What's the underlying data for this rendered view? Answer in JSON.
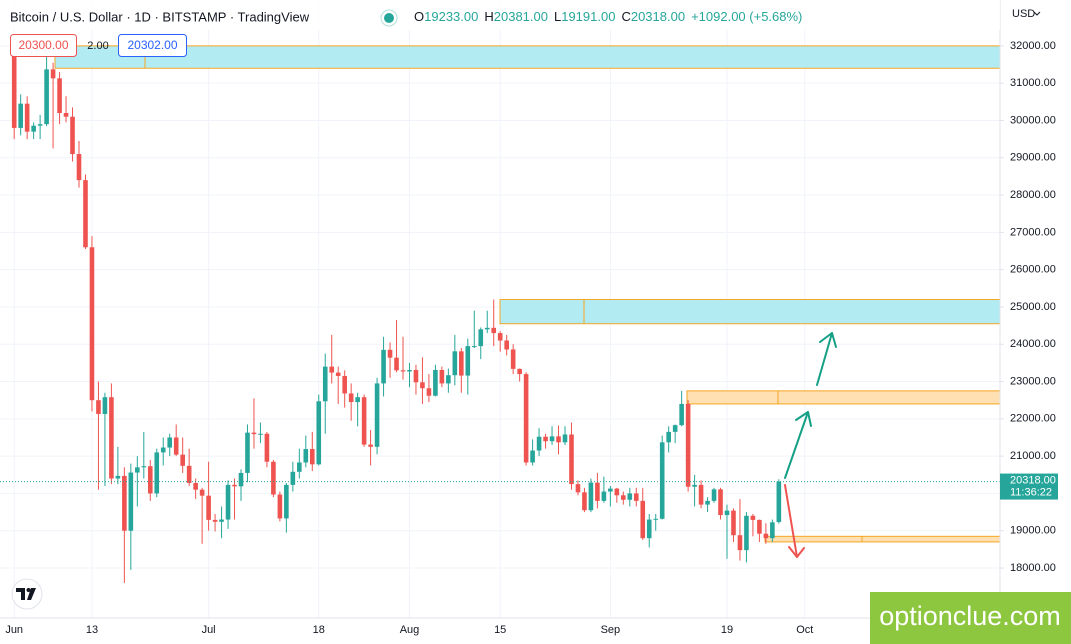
{
  "header": {
    "title": "Bitcoin / U.S. Dollar · 1D · BITSTAMP · TradingView",
    "ohlc": [
      {
        "key": "O",
        "value": "19233.00"
      },
      {
        "key": "H",
        "value": "20381.00"
      },
      {
        "key": "L",
        "value": "19191.00"
      },
      {
        "key": "C",
        "value": "20318.00"
      }
    ],
    "change": "+1092.00 (+5.68%)"
  },
  "trade": {
    "sell": "20300.00",
    "spread": "2.00",
    "buy": "20302.00"
  },
  "watermark": "optionclue.com",
  "chart_data": {
    "type": "candlestick",
    "categories": [
      "Jun",
      null,
      null,
      null,
      null,
      null,
      null,
      null,
      null,
      null,
      null,
      null,
      "13",
      null,
      null,
      null,
      null,
      null,
      null,
      null,
      null,
      null,
      null,
      null,
      null,
      null,
      null,
      null,
      null,
      null,
      "Jul",
      null,
      null,
      null,
      null,
      null,
      null,
      null,
      null,
      null,
      null,
      null,
      null,
      null,
      null,
      null,
      null,
      "18",
      null,
      null,
      null,
      null,
      null,
      null,
      null,
      null,
      null,
      null,
      null,
      null,
      null,
      "Aug",
      null,
      null,
      null,
      null,
      null,
      null,
      null,
      null,
      null,
      null,
      null,
      null,
      null,
      "15",
      null,
      null,
      null,
      null,
      null,
      null,
      null,
      null,
      null,
      null,
      null,
      null,
      null,
      null,
      null,
      null,
      "Sep",
      null,
      null,
      null,
      null,
      null,
      null,
      null,
      null,
      null,
      null,
      null,
      null,
      null,
      null,
      null,
      null,
      null,
      "19",
      null,
      null,
      null,
      null,
      null,
      null,
      null,
      null,
      null,
      null,
      null,
      "Oct"
    ],
    "open": [
      31800,
      29800,
      30450,
      29700,
      29860,
      29900,
      31370,
      31130,
      30200,
      30100,
      29100,
      28400,
      26600,
      22500,
      22130,
      22580,
      20400,
      20470,
      19000,
      20560,
      20700,
      20730,
      20000,
      21100,
      21230,
      21500,
      21040,
      20740,
      20280,
      20100,
      19940,
      19290,
      19240,
      19300,
      20230,
      20190,
      20550,
      21630,
      21590,
      21600,
      20850,
      19970,
      19330,
      20230,
      20580,
      20830,
      21190,
      20780,
      22470,
      23400,
      23240,
      23150,
      22680,
      22450,
      22580,
      21310,
      21250,
      22950,
      23850,
      23640,
      23300,
      23270,
      23310,
      22980,
      22820,
      22620,
      23310,
      22950,
      23170,
      23810,
      23160,
      23950,
      23950,
      24400,
      24440,
      24300,
      24100,
      23860,
      23340,
      23200,
      20830,
      21150,
      21520,
      21400,
      21530,
      21370,
      21580,
      20250,
      20030,
      19550,
      20290,
      19800,
      20050,
      20130,
      19950,
      19830,
      20000,
      19800,
      18800,
      19300,
      19320,
      21370,
      21650,
      21830,
      22400,
      20180,
      20230,
      19700,
      19800,
      20110,
      19420,
      19540,
      18880,
      18480,
      19400,
      19290,
      18920,
      18800,
      19233,
      null,
      null,
      null,
      null
    ],
    "high": [
      31950,
      30700,
      30650,
      29950,
      30150,
      31750,
      31550,
      31300,
      30650,
      30350,
      29450,
      28550,
      26900,
      23000,
      22700,
      22950,
      21250,
      20700,
      20800,
      21000,
      21650,
      20900,
      21200,
      21500,
      21600,
      21850,
      21500,
      21200,
      20400,
      20150,
      20850,
      19450,
      19650,
      20350,
      20400,
      20650,
      21850,
      22550,
      21900,
      21650,
      20900,
      20050,
      20280,
      20850,
      21200,
      21550,
      21650,
      22650,
      23750,
      24250,
      23400,
      23300,
      22950,
      22700,
      22650,
      21700,
      23100,
      24200,
      24050,
      24650,
      24200,
      23500,
      23450,
      23650,
      23200,
      23450,
      23400,
      23350,
      24250,
      23900,
      24150,
      24900,
      24450,
      24900,
      25200,
      24350,
      24250,
      24000,
      23350,
      23250,
      21450,
      21750,
      21600,
      21800,
      21820,
      21800,
      21900,
      20350,
      20150,
      20400,
      20550,
      20450,
      20200,
      20150,
      20050,
      20150,
      20150,
      20150,
      19450,
      19450,
      21550,
      21800,
      21850,
      22750,
      22500,
      20500,
      20350,
      19900,
      20150,
      20150,
      19700,
      19600,
      19850,
      19500,
      19450,
      19300,
      19200,
      19300,
      20381,
      null,
      null,
      null,
      null
    ],
    "low": [
      29500,
      29600,
      29500,
      29500,
      29500,
      29850,
      29250,
      29900,
      29950,
      28900,
      28200,
      26550,
      22200,
      20100,
      20200,
      20250,
      20250,
      17600,
      17950,
      19650,
      20400,
      19800,
      19900,
      20750,
      21000,
      21000,
      20550,
      20200,
      19850,
      18650,
      19000,
      18980,
      18800,
      19050,
      19300,
      19800,
      20300,
      21200,
      21350,
      20700,
      19900,
      19250,
      18950,
      20050,
      20400,
      20700,
      20600,
      20750,
      21600,
      22950,
      22400,
      22300,
      21950,
      21800,
      21250,
      20750,
      21050,
      22600,
      23100,
      23250,
      23050,
      22850,
      22650,
      22400,
      22450,
      22600,
      22850,
      22700,
      22900,
      22700,
      22650,
      23900,
      23600,
      24300,
      23950,
      23800,
      23700,
      23200,
      23000,
      20750,
      20750,
      21000,
      21200,
      21300,
      21050,
      21300,
      20100,
      19950,
      19500,
      19500,
      19600,
      19750,
      19650,
      19750,
      19700,
      19650,
      19650,
      18750,
      18550,
      19000,
      19300,
      21100,
      21350,
      21800,
      20050,
      19650,
      19600,
      19500,
      19750,
      19300,
      18250,
      18700,
      18200,
      18150,
      18850,
      18700,
      18650,
      18700,
      19191,
      null,
      null,
      null,
      null
    ],
    "close": [
      29800,
      30450,
      29700,
      29860,
      29900,
      31370,
      31130,
      30200,
      30100,
      29100,
      28400,
      26600,
      22500,
      22130,
      22580,
      20400,
      20470,
      19000,
      20560,
      20700,
      20730,
      20000,
      21100,
      21230,
      21500,
      21040,
      20740,
      20280,
      20100,
      19940,
      19290,
      19240,
      19300,
      20230,
      20190,
      20550,
      21630,
      21590,
      21600,
      20850,
      19970,
      19330,
      20230,
      20580,
      20830,
      21190,
      20780,
      22470,
      23400,
      23240,
      23150,
      22680,
      22450,
      22580,
      21310,
      21250,
      22950,
      23850,
      23640,
      23300,
      23270,
      23310,
      22980,
      22820,
      22620,
      23310,
      22950,
      23170,
      23810,
      23160,
      23950,
      23950,
      24400,
      24440,
      24300,
      24100,
      23860,
      23340,
      23200,
      20830,
      21150,
      21520,
      21400,
      21530,
      21370,
      21580,
      20250,
      20030,
      19550,
      20290,
      19800,
      20050,
      20130,
      19950,
      19830,
      20000,
      19800,
      18800,
      19300,
      19320,
      21370,
      21650,
      21830,
      22400,
      20180,
      20230,
      19700,
      19800,
      20110,
      19420,
      19540,
      18880,
      18480,
      19400,
      19290,
      18920,
      18800,
      19226,
      20318,
      null,
      null,
      null,
      null
    ],
    "up_color": "#26a69a",
    "down_color": "#ef5350",
    "ylim": [
      16660,
      33230
    ],
    "yticks": [
      {
        "value": 18000,
        "label": "18000.00"
      },
      {
        "value": 19000,
        "label": "19000.00"
      },
      {
        "value": 20000,
        "label": "20000.00"
      },
      {
        "value": 21000,
        "label": "21000.00"
      },
      {
        "value": 22000,
        "label": "22000.00"
      },
      {
        "value": 23000,
        "label": "23000.00"
      },
      {
        "value": 24000,
        "label": "24000.00"
      },
      {
        "value": 25000,
        "label": "25000.00"
      },
      {
        "value": 26000,
        "label": "26000.00"
      },
      {
        "value": 27000,
        "label": "27000.00"
      },
      {
        "value": 28000,
        "label": "28000.00"
      },
      {
        "value": 29000,
        "label": "29000.00"
      },
      {
        "value": 30000,
        "label": "30000.00"
      },
      {
        "value": 31000,
        "label": "31000.00"
      },
      {
        "value": 32000,
        "label": "32000.00"
      }
    ],
    "grid": true,
    "currency": "USD",
    "last_price_label": "20318.00",
    "countdown": "11:36:22",
    "zones": [
      {
        "low": 31400,
        "high": 32000,
        "fill": "#b2ebf2"
      },
      {
        "low": 24550,
        "high": 25200,
        "fill": "#b2ebf2"
      },
      {
        "low": 22400,
        "high": 22750,
        "fill": "#ffe0b2"
      },
      {
        "low": 18700,
        "high": 18850,
        "fill": "#ffe0b2"
      }
    ]
  }
}
